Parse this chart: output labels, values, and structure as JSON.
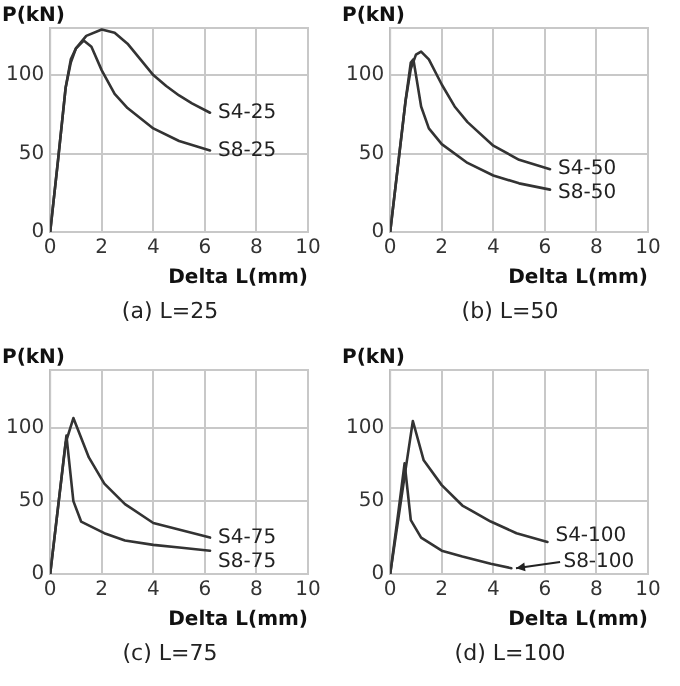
{
  "chart_data": [
    {
      "type": "line",
      "xlabel": "Delta L(mm)",
      "ylabel": "P(kN)",
      "xlim": [
        0,
        10
      ],
      "xticks": [
        0,
        2,
        4,
        6,
        8,
        10
      ],
      "ylim": [
        0,
        130
      ],
      "yticks": [
        0,
        50,
        100
      ],
      "grid": true,
      "legend": false,
      "marker": "none",
      "line_style": "solid",
      "annotations": [
        "(a) L=25"
      ],
      "series": [
        {
          "name": "S4-25",
          "color": "#333333",
          "x": [
            0,
            0.3,
            0.6,
            0.8,
            1.0,
            1.4,
            2.0,
            2.5,
            3.0,
            3.5,
            4.0,
            4.5,
            5.0,
            5.5,
            6.2
          ],
          "values": [
            0,
            45,
            92,
            110,
            117,
            125,
            129,
            127,
            120,
            110,
            100,
            93,
            87,
            82,
            76
          ]
        },
        {
          "name": "S8-25",
          "color": "#333333",
          "x": [
            0,
            0.3,
            0.6,
            0.8,
            1.0,
            1.3,
            1.6,
            2.0,
            2.5,
            3.0,
            4.0,
            5.0,
            6.2
          ],
          "values": [
            0,
            45,
            92,
            108,
            117,
            122,
            118,
            103,
            88,
            79,
            66,
            58,
            52
          ]
        }
      ]
    },
    {
      "type": "line",
      "xlabel": "Delta L(mm)",
      "ylabel": "P(kN)",
      "xlim": [
        0,
        10
      ],
      "xticks": [
        0,
        2,
        4,
        6,
        8,
        10
      ],
      "ylim": [
        0,
        130
      ],
      "yticks": [
        0,
        50,
        100
      ],
      "grid": true,
      "legend": false,
      "marker": "none",
      "line_style": "solid",
      "annotations": [
        "(b) L=50"
      ],
      "series": [
        {
          "name": "S4-50",
          "color": "#333333",
          "x": [
            0,
            0.3,
            0.6,
            0.8,
            1.0,
            1.2,
            1.5,
            2.0,
            2.5,
            3.0,
            4.0,
            5.0,
            6.2
          ],
          "values": [
            0,
            42,
            84,
            104,
            113,
            115,
            110,
            94,
            80,
            70,
            55,
            46,
            40
          ]
        },
        {
          "name": "S8-50",
          "color": "#333333",
          "x": [
            0,
            0.3,
            0.6,
            0.8,
            0.9,
            1.0,
            1.2,
            1.5,
            2.0,
            3.0,
            4.0,
            5.0,
            6.2
          ],
          "values": [
            0,
            42,
            84,
            108,
            110,
            100,
            80,
            66,
            56,
            44,
            36,
            31,
            27
          ]
        }
      ]
    },
    {
      "type": "line",
      "xlabel": "Delta L(mm)",
      "ylabel": "P(kN)",
      "xlim": [
        0,
        10
      ],
      "xticks": [
        0,
        2,
        4,
        6,
        8,
        10
      ],
      "ylim": [
        0,
        140
      ],
      "yticks": [
        0,
        50,
        100
      ],
      "grid": true,
      "legend": false,
      "marker": "none",
      "line_style": "solid",
      "annotations": [
        "(c) L=75"
      ],
      "series": [
        {
          "name": "S4-75",
          "color": "#333333",
          "x": [
            0,
            0.3,
            0.6,
            0.9,
            1.5,
            2.1,
            2.9,
            4.0,
            5.1,
            6.2
          ],
          "values": [
            0,
            45,
            90,
            107,
            80,
            62,
            48,
            35,
            30,
            25
          ]
        },
        {
          "name": "S8-75",
          "color": "#333333",
          "x": [
            0,
            0.3,
            0.63,
            0.9,
            1.2,
            2.1,
            2.9,
            4.0,
            5.1,
            6.2
          ],
          "values": [
            0,
            45,
            95,
            50,
            36,
            28,
            23,
            20,
            18,
            16
          ]
        }
      ]
    },
    {
      "type": "line",
      "xlabel": "Delta L(mm)",
      "ylabel": "P(kN)",
      "xlim": [
        0,
        10
      ],
      "xticks": [
        0,
        2,
        4,
        6,
        8,
        10
      ],
      "ylim": [
        0,
        140
      ],
      "yticks": [
        0,
        50,
        100
      ],
      "grid": true,
      "legend": false,
      "marker": "none",
      "line_style": "solid",
      "annotations": [
        "(d) L=100"
      ],
      "series": [
        {
          "name": "S4-100",
          "color": "#333333",
          "x": [
            0,
            0.3,
            0.6,
            0.88,
            1.3,
            2.0,
            2.8,
            3.9,
            4.9,
            6.1
          ],
          "values": [
            0,
            36,
            72,
            105,
            78,
            61,
            47,
            36,
            28,
            22
          ]
        },
        {
          "name": "S8-100",
          "color": "#333333",
          "x": [
            0,
            0.3,
            0.56,
            0.8,
            1.2,
            2.0,
            2.8,
            3.9,
            4.7
          ],
          "values": [
            0,
            40,
            76,
            37,
            25,
            16,
            12,
            7,
            4
          ]
        }
      ]
    }
  ]
}
